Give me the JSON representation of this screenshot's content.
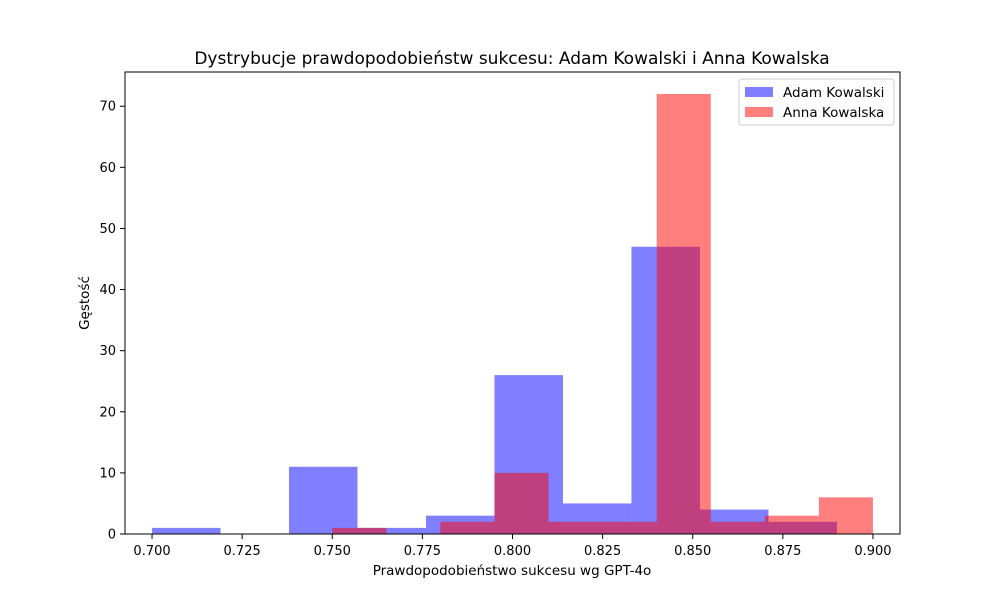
{
  "chart_data": {
    "type": "histogram",
    "title": "Dystrybucje prawdopodobieństw sukcesu: Adam Kowalski i Anna Kowalska",
    "xlabel": "Prawdopodobieństwo sukcesu wg GPT-4o",
    "ylabel": "Gęstość",
    "xlim": [
      0.6925,
      0.9075
    ],
    "ylim": [
      0,
      75.6
    ],
    "xticks": [
      0.7,
      0.725,
      0.75,
      0.775,
      0.8,
      0.825,
      0.85,
      0.875,
      0.9
    ],
    "xtick_labels": [
      "0.700",
      "0.725",
      "0.750",
      "0.775",
      "0.800",
      "0.825",
      "0.850",
      "0.875",
      "0.900"
    ],
    "yticks": [
      0,
      10,
      20,
      30,
      40,
      50,
      60,
      70
    ],
    "ytick_labels": [
      "0",
      "10",
      "20",
      "30",
      "40",
      "50",
      "60",
      "70"
    ],
    "legend_position": "top-right",
    "grid": false,
    "series": [
      {
        "name": "Adam Kowalski",
        "color": "#0000ff",
        "alpha": 0.5,
        "bins": [
          {
            "x0": 0.7,
            "x1": 0.719,
            "value": 1
          },
          {
            "x0": 0.719,
            "x1": 0.738,
            "value": 0
          },
          {
            "x0": 0.738,
            "x1": 0.757,
            "value": 11
          },
          {
            "x0": 0.757,
            "x1": 0.776,
            "value": 1
          },
          {
            "x0": 0.776,
            "x1": 0.795,
            "value": 3
          },
          {
            "x0": 0.795,
            "x1": 0.814,
            "value": 26
          },
          {
            "x0": 0.814,
            "x1": 0.833,
            "value": 5
          },
          {
            "x0": 0.833,
            "x1": 0.852,
            "value": 47
          },
          {
            "x0": 0.852,
            "x1": 0.871,
            "value": 4
          },
          {
            "x0": 0.871,
            "x1": 0.89,
            "value": 2
          }
        ]
      },
      {
        "name": "Anna Kowalska",
        "color": "#ff0000",
        "alpha": 0.5,
        "bins": [
          {
            "x0": 0.75,
            "x1": 0.765,
            "value": 1
          },
          {
            "x0": 0.765,
            "x1": 0.78,
            "value": 0
          },
          {
            "x0": 0.78,
            "x1": 0.795,
            "value": 2
          },
          {
            "x0": 0.795,
            "x1": 0.81,
            "value": 10
          },
          {
            "x0": 0.81,
            "x1": 0.825,
            "value": 2
          },
          {
            "x0": 0.825,
            "x1": 0.84,
            "value": 2
          },
          {
            "x0": 0.84,
            "x1": 0.855,
            "value": 72
          },
          {
            "x0": 0.855,
            "x1": 0.87,
            "value": 2
          },
          {
            "x0": 0.87,
            "x1": 0.885,
            "value": 3
          },
          {
            "x0": 0.885,
            "x1": 0.9,
            "value": 6
          }
        ]
      }
    ]
  }
}
